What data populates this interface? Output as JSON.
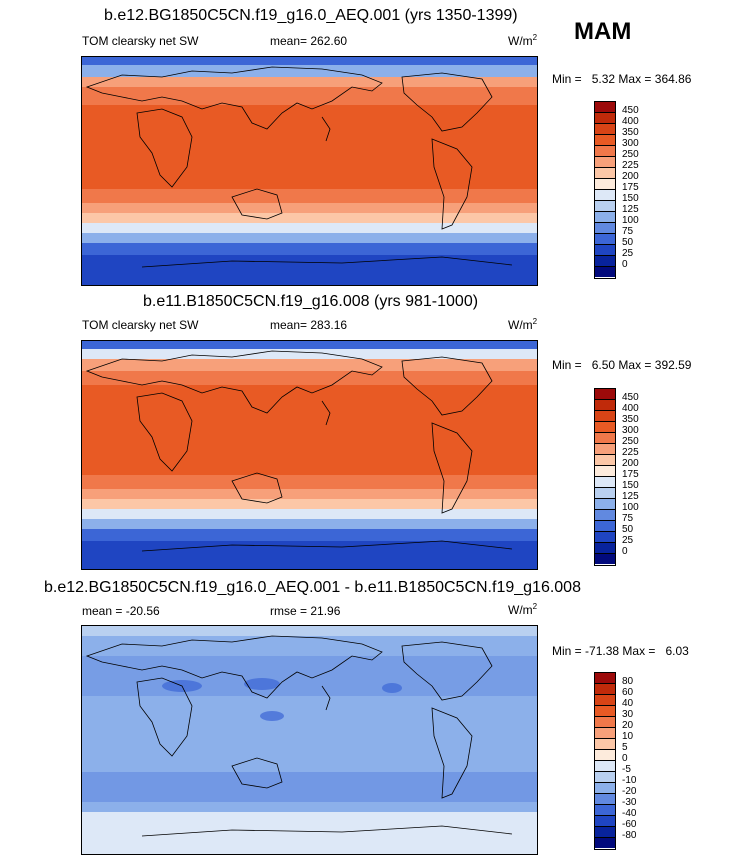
{
  "season": "MAM",
  "panels": [
    {
      "title": "b.e12.BG1850C5CN.f19_g16.0_AEQ.001 (yrs 1350-1399)",
      "left_text": "TOM clearsky net SW",
      "center_text": "mean= 262.60",
      "units": "W/m",
      "units_sup": "2",
      "minmax_label": "Min =",
      "min_val": "5.32",
      "max_label": "Max =",
      "max_val": "364.86",
      "levels": [
        "450",
        "400",
        "350",
        "300",
        "250",
        "225",
        "200",
        "175",
        "150",
        "125",
        "100",
        "75",
        "50",
        "25",
        "0"
      ],
      "colors": [
        "#9c0a0a",
        "#c02a0a",
        "#d84416",
        "#e85a24",
        "#f0784a",
        "#f7a07a",
        "#fcc7a7",
        "#fdebdc",
        "#dde8f7",
        "#b9d0f0",
        "#8cb0ea",
        "#6189e0",
        "#3c66d6",
        "#1f45c2",
        "#08239c",
        "#020a7c"
      ]
    },
    {
      "title": "b.e11.B1850C5CN.f19_g16.008 (yrs 981-1000)",
      "left_text": "TOM clearsky net SW",
      "center_text": "mean= 283.16",
      "units": "W/m",
      "units_sup": "2",
      "minmax_label": "Min =",
      "min_val": "6.50",
      "max_label": "Max =",
      "max_val": "392.59",
      "levels": [
        "450",
        "400",
        "350",
        "300",
        "250",
        "225",
        "200",
        "175",
        "150",
        "125",
        "100",
        "75",
        "50",
        "25",
        "0"
      ],
      "colors": [
        "#9c0a0a",
        "#c02a0a",
        "#d84416",
        "#e85a24",
        "#f0784a",
        "#f7a07a",
        "#fcc7a7",
        "#fdebdc",
        "#dde8f7",
        "#b9d0f0",
        "#8cb0ea",
        "#6189e0",
        "#3c66d6",
        "#1f45c2",
        "#08239c",
        "#020a7c"
      ]
    },
    {
      "title": "b.e12.BG1850C5CN.f19_g16.0_AEQ.001 - b.e11.B1850C5CN.f19_g16.008",
      "left_text": "mean = -20.56",
      "center_text": "rmse = 21.96",
      "units": "W/m",
      "units_sup": "2",
      "minmax_label": "Min =",
      "min_val": "-71.38",
      "max_label": "Max =",
      "max_val": "6.03",
      "levels": [
        "80",
        "60",
        "40",
        "30",
        "20",
        "10",
        "5",
        "0",
        "-5",
        "-10",
        "-20",
        "-30",
        "-40",
        "-60",
        "-80"
      ],
      "colors": [
        "#9c0a0a",
        "#c02a0a",
        "#d84416",
        "#e85a24",
        "#f0784a",
        "#f7a07a",
        "#fcc7a7",
        "#fdebdc",
        "#dde8f7",
        "#b9d0f0",
        "#8cb0ea",
        "#6189e0",
        "#3c66d6",
        "#1f45c2",
        "#08239c",
        "#020a7c"
      ]
    }
  ]
}
